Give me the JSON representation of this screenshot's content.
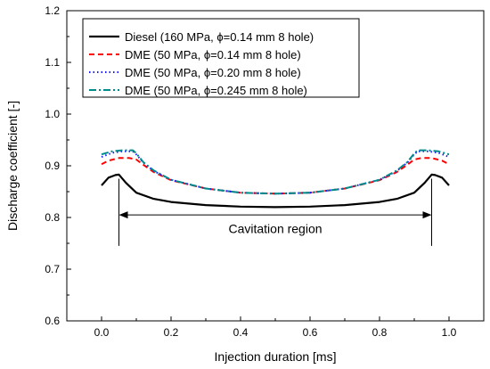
{
  "chart_data": {
    "type": "line",
    "xlabel": "Injection duration [ms]",
    "ylabel": "Discharge coefficient [-]",
    "xlim": [
      -0.1,
      1.1
    ],
    "ylim": [
      0.6,
      1.2
    ],
    "xticks": [
      "0.0",
      "0.2",
      "0.4",
      "0.6",
      "0.8",
      "1.0"
    ],
    "yticks": [
      "0.6",
      "0.7",
      "0.8",
      "0.9",
      "1.0",
      "1.1",
      "1.2"
    ],
    "legend_position": "top-left",
    "annotation": "Cavitation region",
    "annotation_range": [
      0.05,
      0.95
    ],
    "annotation_y": 0.805,
    "series": [
      {
        "name": "Diesel (160 MPa, ϕ=0.14 mm 8 hole)",
        "color": "#000000",
        "style": "solid",
        "x": [
          0.0,
          0.02,
          0.04,
          0.05,
          0.07,
          0.1,
          0.15,
          0.2,
          0.3,
          0.4,
          0.5,
          0.6,
          0.7,
          0.8,
          0.85,
          0.9,
          0.93,
          0.95,
          0.96,
          0.98,
          1.0
        ],
        "y": [
          0.862,
          0.877,
          0.882,
          0.883,
          0.867,
          0.848,
          0.836,
          0.83,
          0.824,
          0.821,
          0.82,
          0.821,
          0.824,
          0.83,
          0.836,
          0.848,
          0.867,
          0.883,
          0.882,
          0.877,
          0.862
        ]
      },
      {
        "name": "DME (50 MPa, ϕ=0.14 mm 8 hole)",
        "color": "#ff0000",
        "style": "dash",
        "x": [
          0.0,
          0.02,
          0.05,
          0.08,
          0.1,
          0.12,
          0.15,
          0.2,
          0.3,
          0.4,
          0.5,
          0.6,
          0.7,
          0.8,
          0.85,
          0.88,
          0.9,
          0.92,
          0.95,
          0.98,
          1.0
        ],
        "y": [
          0.903,
          0.91,
          0.915,
          0.915,
          0.912,
          0.902,
          0.888,
          0.872,
          0.856,
          0.848,
          0.846,
          0.848,
          0.856,
          0.872,
          0.888,
          0.902,
          0.912,
          0.915,
          0.915,
          0.91,
          0.903
        ]
      },
      {
        "name": "DME (50 MPa, ϕ=0.20 mm 8 hole)",
        "color": "#1a1aff",
        "style": "dot",
        "x": [
          0.0,
          0.03,
          0.06,
          0.09,
          0.1,
          0.12,
          0.15,
          0.2,
          0.3,
          0.4,
          0.5,
          0.6,
          0.7,
          0.8,
          0.85,
          0.88,
          0.9,
          0.91,
          0.94,
          0.97,
          1.0
        ],
        "y": [
          0.917,
          0.925,
          0.928,
          0.928,
          0.922,
          0.906,
          0.89,
          0.873,
          0.856,
          0.848,
          0.846,
          0.848,
          0.856,
          0.873,
          0.89,
          0.906,
          0.922,
          0.928,
          0.928,
          0.925,
          0.917
        ]
      },
      {
        "name": "DME (50 MPa, ϕ=0.245 mm 8 hole)",
        "color": "#008b8b",
        "style": "dashdot",
        "x": [
          0.0,
          0.03,
          0.06,
          0.09,
          0.1,
          0.12,
          0.15,
          0.2,
          0.3,
          0.4,
          0.5,
          0.6,
          0.7,
          0.8,
          0.85,
          0.88,
          0.9,
          0.91,
          0.94,
          0.97,
          1.0
        ],
        "y": [
          0.922,
          0.928,
          0.93,
          0.93,
          0.924,
          0.907,
          0.891,
          0.873,
          0.856,
          0.848,
          0.846,
          0.848,
          0.856,
          0.873,
          0.891,
          0.907,
          0.924,
          0.93,
          0.93,
          0.928,
          0.922
        ]
      }
    ]
  }
}
